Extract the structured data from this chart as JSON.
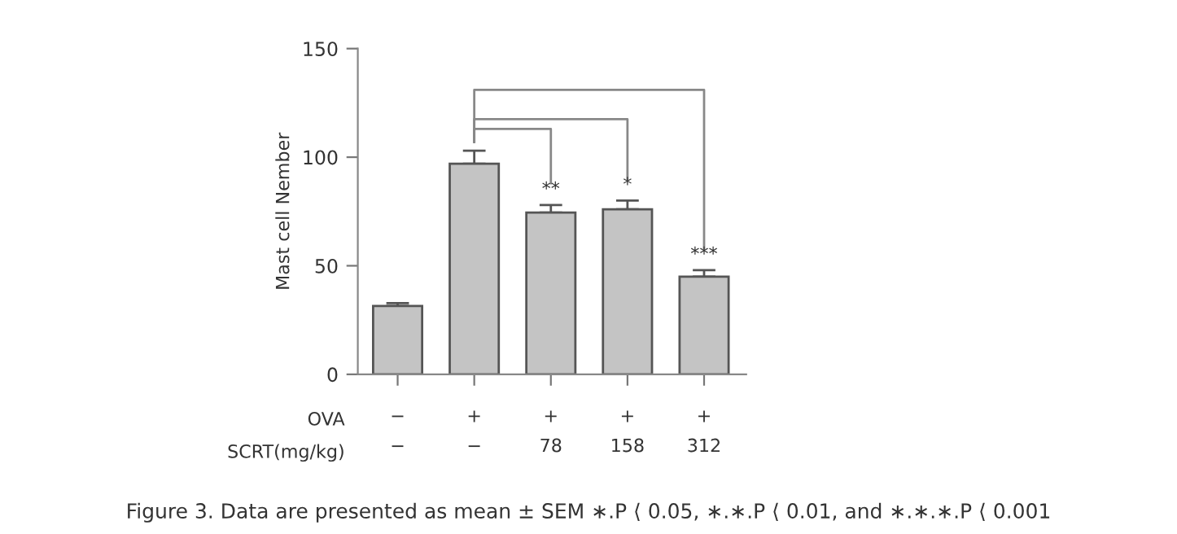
{
  "chart_data": {
    "type": "bar",
    "ylabel": "Mast cell Nember",
    "categories": [
      "−\n−",
      "+\n−",
      "+\n78",
      "+\n158",
      "+\n312"
    ],
    "values": [
      31.5,
      97,
      74.5,
      76,
      45
    ],
    "errors": [
      1.3,
      6,
      3.5,
      4,
      3
    ],
    "color": "#c4c4c4",
    "ylim": [
      0,
      150
    ],
    "yticks": [
      0,
      50,
      100,
      150
    ],
    "grid": false,
    "annotations": [
      "**",
      "*",
      "***",
      "OVA",
      "SCRT(mg/kg)",
      "Figure 3. Data are presented as mean ± SEM ∗.P ⟨ 0.05, ∗.∗.P ⟨ 0.01, and ∗.∗.∗.P ⟨ 0.001"
    ]
  }
}
